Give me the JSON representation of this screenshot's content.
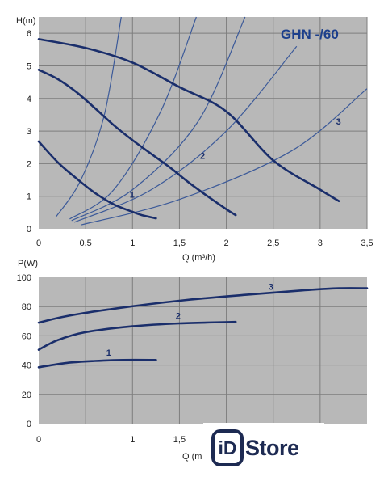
{
  "chart_data": [
    {
      "type": "line",
      "title": "GHN -/60",
      "xlabel": "Q (m³/h)",
      "ylabel": "H(m)",
      "xlim": [
        0,
        3.5
      ],
      "ylim": [
        0,
        6.5
      ],
      "x_ticks": [
        "0",
        "0,5",
        "1",
        "1,5",
        "2",
        "2,5",
        "3",
        "3,5"
      ],
      "y_ticks": [
        "0",
        "1",
        "2",
        "3",
        "4",
        "5",
        "6"
      ],
      "grid": true,
      "series": [
        {
          "name": "1",
          "points": [
            [
              0,
              2.68
            ],
            [
              0.2,
              2.05
            ],
            [
              0.4,
              1.55
            ],
            [
              0.6,
              1.1
            ],
            [
              0.8,
              0.75
            ],
            [
              1.0,
              0.52
            ],
            [
              1.1,
              0.42
            ],
            [
              1.25,
              0.32
            ]
          ]
        },
        {
          "name": "2",
          "points": [
            [
              0,
              4.88
            ],
            [
              0.2,
              4.6
            ],
            [
              0.4,
              4.2
            ],
            [
              0.6,
              3.7
            ],
            [
              0.8,
              3.18
            ],
            [
              1.0,
              2.72
            ],
            [
              1.2,
              2.3
            ],
            [
              1.4,
              1.88
            ],
            [
              1.6,
              1.42
            ],
            [
              1.8,
              1.0
            ],
            [
              2.0,
              0.6
            ],
            [
              2.1,
              0.42
            ]
          ]
        },
        {
          "name": "3",
          "points": [
            [
              0,
              5.82
            ],
            [
              0.5,
              5.55
            ],
            [
              1.0,
              5.1
            ],
            [
              1.5,
              4.35
            ],
            [
              2.0,
              3.6
            ],
            [
              2.5,
              2.1
            ],
            [
              3.0,
              1.2
            ],
            [
              3.2,
              0.85
            ]
          ]
        }
      ],
      "system_curves": [
        [
          [
            0.18,
            0.35
          ],
          [
            0.45,
            1.5
          ],
          [
            0.7,
            3.5
          ],
          [
            0.88,
            6.5
          ]
        ],
        [
          [
            0.33,
            0.3
          ],
          [
            0.8,
            1.2
          ],
          [
            1.3,
            3.6
          ],
          [
            1.68,
            6.5
          ]
        ],
        [
          [
            0.35,
            0.25
          ],
          [
            1.0,
            1.2
          ],
          [
            1.7,
            3.3
          ],
          [
            2.2,
            6.5
          ]
        ],
        [
          [
            0.38,
            0.2
          ],
          [
            1.2,
            1.2
          ],
          [
            2.0,
            3.0
          ],
          [
            2.75,
            5.6
          ]
        ],
        [
          [
            0.45,
            0.12
          ],
          [
            1.5,
            0.9
          ],
          [
            2.7,
            2.4
          ],
          [
            3.5,
            4.3
          ]
        ]
      ],
      "line_color": "#1a2e6b",
      "system_color": "#3c5a99",
      "plot_bg": "#b8b8b8"
    },
    {
      "type": "line",
      "title": "",
      "xlabel": "Q (m",
      "ylabel": "P(W)",
      "xlim": [
        0,
        3.5
      ],
      "ylim": [
        0,
        100
      ],
      "x_ticks": [
        "0",
        "1",
        "1,5"
      ],
      "y_ticks": [
        "0",
        "20",
        "40",
        "60",
        "80",
        "100"
      ],
      "grid": true,
      "series": [
        {
          "name": "1",
          "points": [
            [
              0,
              38.5
            ],
            [
              0.3,
              41.5
            ],
            [
              0.6,
              42.8
            ],
            [
              0.9,
              43.5
            ],
            [
              1.25,
              43.5
            ]
          ]
        },
        {
          "name": "2",
          "points": [
            [
              0,
              50.5
            ],
            [
              0.2,
              57
            ],
            [
              0.5,
              62.5
            ],
            [
              1.0,
              66.5
            ],
            [
              1.5,
              68.5
            ],
            [
              2.1,
              69.5
            ]
          ]
        },
        {
          "name": "3",
          "points": [
            [
              0,
              69
            ],
            [
              0.3,
              73.5
            ],
            [
              0.8,
              78.5
            ],
            [
              1.5,
              84
            ],
            [
              2.2,
              88
            ],
            [
              2.8,
              91
            ],
            [
              3.2,
              92.5
            ],
            [
              3.5,
              92.5
            ]
          ]
        }
      ],
      "line_color": "#1a2e6b",
      "plot_bg": "#b8b8b8"
    }
  ],
  "logo": {
    "id_text": "iD",
    "store_text": "Store"
  }
}
